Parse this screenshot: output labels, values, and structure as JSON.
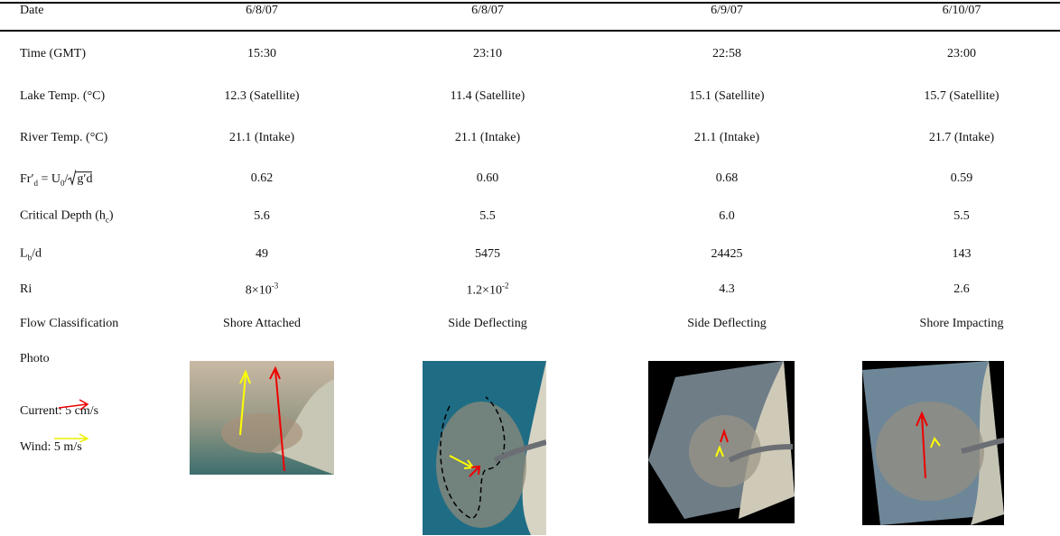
{
  "table": {
    "header": [
      "Date",
      "6/8/07",
      "6/8/07",
      "6/9/07",
      "6/10/07"
    ],
    "rows": [
      {
        "label": "Time (GMT)",
        "cells": [
          "15:30",
          "23:10",
          "22:58",
          "23:00"
        ]
      },
      {
        "label": "Lake Temp. (°C)",
        "cells": [
          "12.3 (Satellite)",
          "11.4 (Satellite)",
          "15.1 (Satellite)",
          "15.7 (Satellite)"
        ]
      },
      {
        "label": "River Temp. (°C)",
        "cells": [
          "21.1 (Intake)",
          "21.1 (Intake)",
          "21.1 (Intake)",
          "21.7 (Intake)"
        ]
      },
      {
        "label": [
          "Fr′",
          "d",
          " = U",
          "0",
          "/",
          "g′d"
        ],
        "cells": [
          "0.62",
          "0.60",
          "0.68",
          "0.59"
        ]
      },
      {
        "label": [
          "Critical Depth (h",
          "c",
          ")"
        ],
        "cells": [
          "5.6",
          "5.5",
          "6.0",
          "5.5"
        ]
      },
      {
        "label": [
          "L",
          "b",
          "/d"
        ],
        "cells": [
          "49",
          "5475",
          "24425",
          "143"
        ]
      },
      {
        "label": "Ri",
        "cells": [
          [
            "8×10",
            "-3"
          ],
          [
            "1.2×10",
            "-2"
          ],
          "4.3",
          "2.6"
        ]
      },
      {
        "label": "Flow Classification",
        "cells": [
          "Shore Attached",
          "Side Deflecting",
          "Side Deflecting",
          "Shore Impacting"
        ]
      },
      {
        "label": "Photo"
      }
    ],
    "legend": [
      "Current: 5 cm/s",
      "Wind: 5 m/s"
    ]
  }
}
